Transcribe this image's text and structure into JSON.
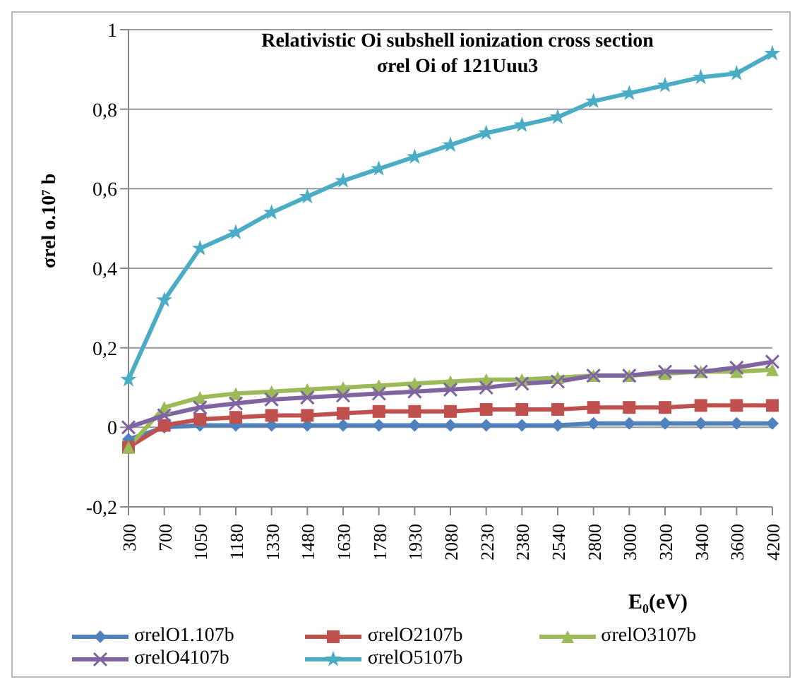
{
  "chart_data": {
    "type": "line",
    "title": "Relativistic  Oi subshell ionization  cross section",
    "subtitle": "σrel Oi of 121Uuu3",
    "xlabel": "E₀(eV)",
    "ylabel": "σrel o.10⁷ b",
    "categories": [
      "300",
      "700",
      "1050",
      "1180",
      "1330",
      "1480",
      "1630",
      "1780",
      "1930",
      "2080",
      "2230",
      "2380",
      "2540",
      "2800",
      "3000",
      "3200",
      "3400",
      "3600",
      "4200"
    ],
    "series": [
      {
        "name": "σrelO1.107b",
        "color": "#4f81bd",
        "marker": "diamond",
        "values": [
          -0.03,
          0,
          0.005,
          0.005,
          0.005,
          0.005,
          0.005,
          0.005,
          0.005,
          0.005,
          0.005,
          0.005,
          0.005,
          0.01,
          0.01,
          0.01,
          0.01,
          0.01,
          0.01
        ]
      },
      {
        "name": "σrelO2107b",
        "color": "#c0504d",
        "marker": "square",
        "values": [
          -0.05,
          0.005,
          0.02,
          0.025,
          0.03,
          0.03,
          0.035,
          0.04,
          0.04,
          0.04,
          0.045,
          0.045,
          0.045,
          0.05,
          0.05,
          0.05,
          0.055,
          0.055,
          0.055
        ]
      },
      {
        "name": "σrelO3107b",
        "color": "#9bbb59",
        "marker": "triangle",
        "values": [
          -0.05,
          0.05,
          0.075,
          0.085,
          0.09,
          0.095,
          0.1,
          0.105,
          0.11,
          0.115,
          0.12,
          0.12,
          0.125,
          0.13,
          0.13,
          0.135,
          0.14,
          0.14,
          0.145
        ]
      },
      {
        "name": "σrelO4107b",
        "color": "#8064a2",
        "marker": "cross",
        "values": [
          0,
          0.03,
          0.05,
          0.06,
          0.07,
          0.075,
          0.08,
          0.085,
          0.09,
          0.095,
          0.1,
          0.11,
          0.115,
          0.13,
          0.13,
          0.14,
          0.14,
          0.15,
          0.165
        ]
      },
      {
        "name": "σrelO5107b",
        "color": "#4bacc6",
        "marker": "star",
        "values": [
          0.12,
          0.32,
          0.45,
          0.49,
          0.54,
          0.58,
          0.62,
          0.65,
          0.68,
          0.71,
          0.74,
          0.76,
          0.78,
          0.82,
          0.84,
          0.86,
          0.88,
          0.89,
          0.94
        ]
      }
    ],
    "ylim": [
      -0.2,
      1
    ],
    "yticks": [
      {
        "value": -0.2,
        "label": "-0,2"
      },
      {
        "value": 0,
        "label": "0"
      },
      {
        "value": 0.2,
        "label": "0,2"
      },
      {
        "value": 0.4,
        "label": "0,4"
      },
      {
        "value": 0.6,
        "label": "0,6"
      },
      {
        "value": 0.8,
        "label": "0,8"
      },
      {
        "value": 1,
        "label": "1"
      }
    ],
    "grid": "y",
    "legend": "bottom"
  }
}
